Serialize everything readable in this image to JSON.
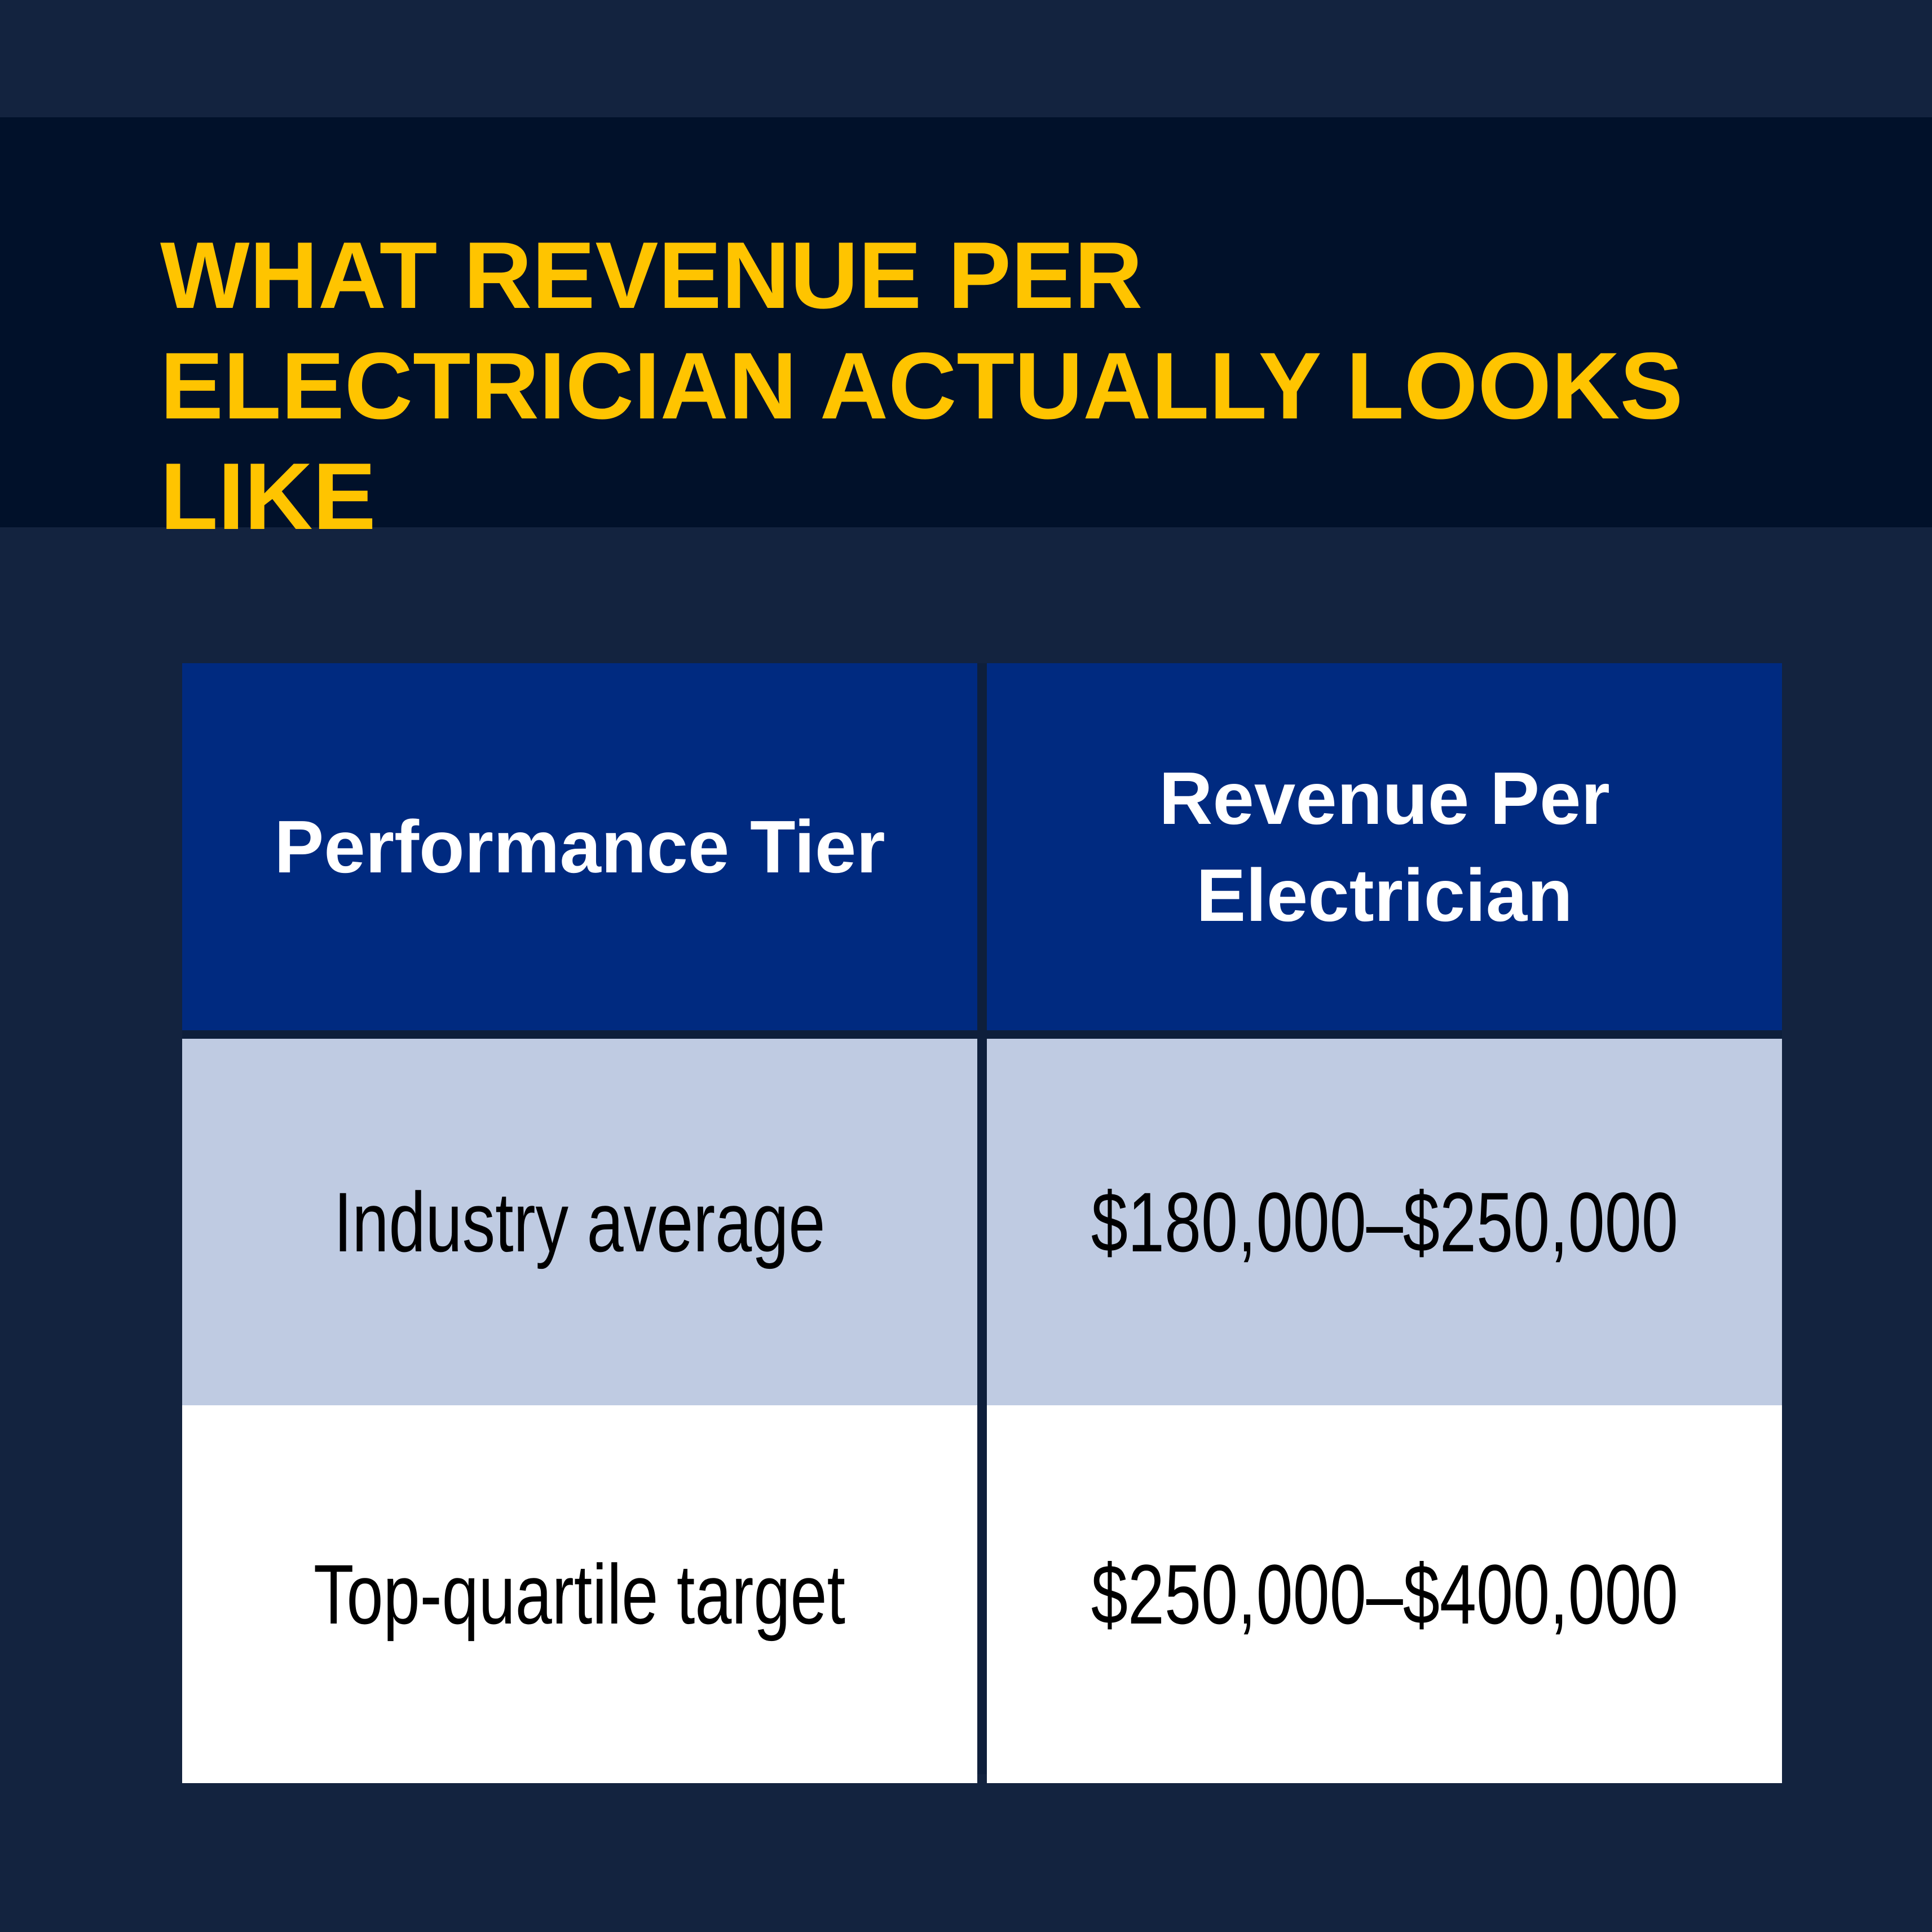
{
  "header": {
    "title": "WHAT REVENUE PER ELECTRICIAN ACTUALLY LOOKS LIKE"
  },
  "table": {
    "columns": [
      "Performance Tier",
      "Revenue Per Electrician"
    ],
    "rows": [
      [
        "Industry average",
        "$180,000–$250,000"
      ],
      [
        "Top-quartile target",
        "$250,000–$400,000"
      ]
    ]
  }
}
